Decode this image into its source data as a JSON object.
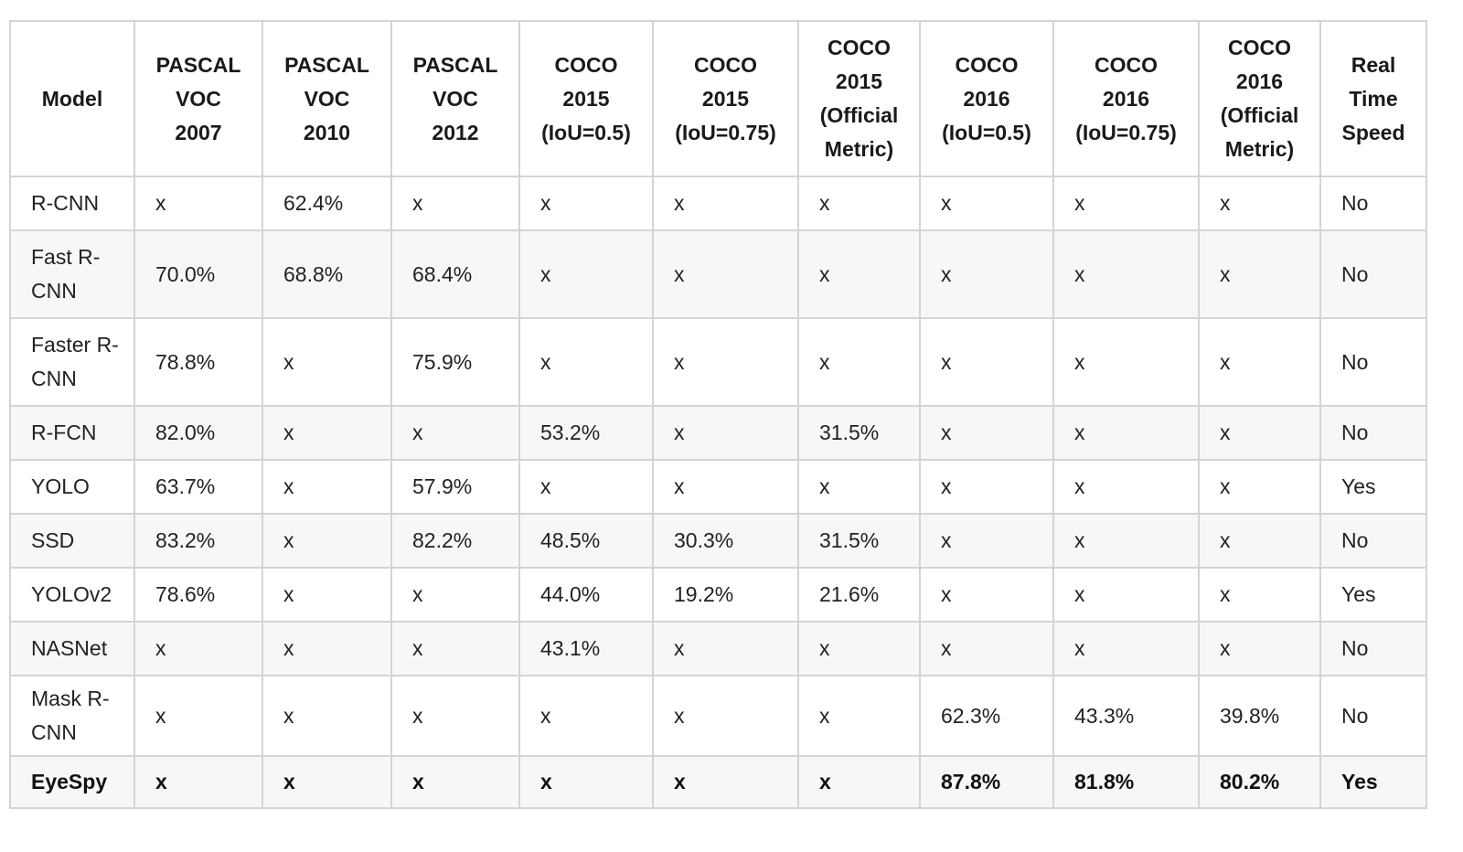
{
  "table": {
    "headers": [
      [
        "Model"
      ],
      [
        "PASCAL",
        "VOC",
        "2007"
      ],
      [
        "PASCAL",
        "VOC",
        "2010"
      ],
      [
        "PASCAL",
        "VOC",
        "2012"
      ],
      [
        "COCO",
        "2015",
        "(IoU=0.5)"
      ],
      [
        "COCO",
        "2015",
        "(IoU=0.75)"
      ],
      [
        "COCO",
        "2015",
        "(Official",
        "Metric)"
      ],
      [
        "COCO",
        "2016",
        "(IoU=0.5)"
      ],
      [
        "COCO",
        "2016",
        "(IoU=0.75)"
      ],
      [
        "COCO",
        "2016",
        "(Official",
        "Metric)"
      ],
      [
        "Real",
        "Time",
        "Speed"
      ]
    ],
    "rows": [
      [
        "R-CNN",
        "x",
        "62.4%",
        "x",
        "x",
        "x",
        "x",
        "x",
        "x",
        "x",
        "No"
      ],
      [
        "Fast R-CNN",
        "70.0%",
        "68.8%",
        "68.4%",
        "x",
        "x",
        "x",
        "x",
        "x",
        "x",
        "No"
      ],
      [
        "Faster R-CNN",
        "78.8%",
        "x",
        "75.9%",
        "x",
        "x",
        "x",
        "x",
        "x",
        "x",
        "No"
      ],
      [
        "R-FCN",
        "82.0%",
        "x",
        "x",
        "53.2%",
        "x",
        "31.5%",
        "x",
        "x",
        "x",
        "No"
      ],
      [
        "YOLO",
        "63.7%",
        "x",
        "57.9%",
        "x",
        "x",
        "x",
        "x",
        "x",
        "x",
        "Yes"
      ],
      [
        "SSD",
        "83.2%",
        "x",
        "82.2%",
        "48.5%",
        "30.3%",
        "31.5%",
        "x",
        "x",
        "x",
        "No"
      ],
      [
        "YOLOv2",
        "78.6%",
        "x",
        "x",
        "44.0%",
        "19.2%",
        "21.6%",
        "x",
        "x",
        "x",
        "Yes"
      ],
      [
        "NASNet",
        "x",
        "x",
        "x",
        "43.1%",
        "x",
        "x",
        "x",
        "x",
        "x",
        "No"
      ],
      [
        "Mask R-CNN",
        "x",
        "x",
        "x",
        "x",
        "x",
        "x",
        "62.3%",
        "43.3%",
        "39.8%",
        "No"
      ],
      [
        "EyeSpy",
        "x",
        "x",
        "x",
        "x",
        "x",
        "x",
        "87.8%",
        "81.8%",
        "80.2%",
        "Yes"
      ]
    ]
  }
}
